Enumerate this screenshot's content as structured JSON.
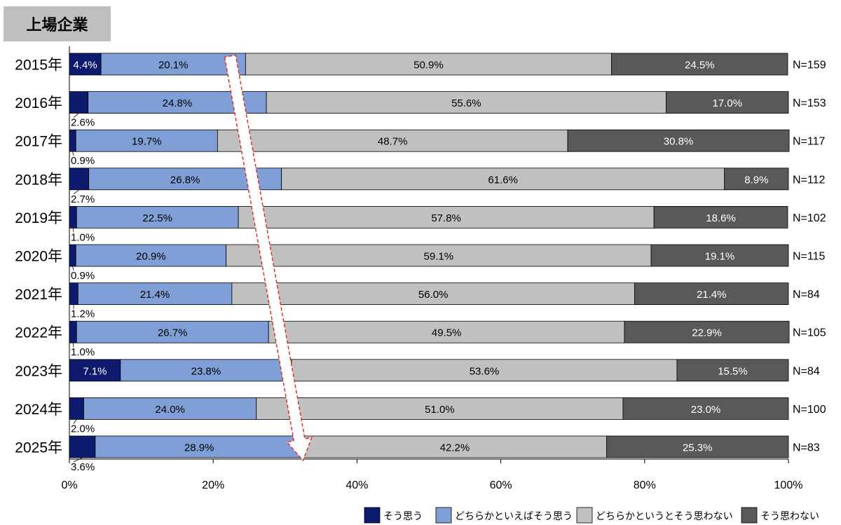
{
  "header": {
    "badge": "上場企業"
  },
  "chart_data": {
    "type": "bar",
    "orientation": "horizontal-stacked-100",
    "categories": [
      "2015年",
      "2016年",
      "2017年",
      "2018年",
      "2019年",
      "2020年",
      "2021年",
      "2022年",
      "2023年",
      "2024年",
      "2025年"
    ],
    "n_labels": [
      "N=159",
      "N=153",
      "N=117",
      "N=112",
      "N=102",
      "N=115",
      "N=84",
      "N=105",
      "N=84",
      "N=100",
      "N=83"
    ],
    "series": [
      {
        "name": "そう思う",
        "color": "#0d1a6e",
        "values": [
          4.4,
          2.6,
          0.9,
          2.7,
          1.0,
          0.9,
          1.2,
          1.0,
          7.1,
          2.0,
          3.6
        ],
        "labels": [
          "4.4%",
          "2.6%",
          "0.9%",
          "2.7%",
          "1.0%",
          "0.9%",
          "1.2%",
          "1.0%",
          "7.1%",
          "2.0%",
          "3.6%"
        ]
      },
      {
        "name": "どちらかといえばそう思う",
        "color": "#7f9fd6",
        "values": [
          20.1,
          24.8,
          19.7,
          26.8,
          22.5,
          20.9,
          21.4,
          26.7,
          23.8,
          24.0,
          28.9
        ],
        "labels": [
          "20.1%",
          "24.8%",
          "19.7%",
          "26.8%",
          "22.5%",
          "20.9%",
          "21.4%",
          "26.7%",
          "23.8%",
          "24.0%",
          "28.9%"
        ]
      },
      {
        "name": "どちらかというとそう思わない",
        "color": "#c0c0c0",
        "values": [
          50.9,
          55.6,
          48.7,
          61.6,
          57.8,
          59.1,
          56.0,
          49.5,
          53.6,
          51.0,
          42.2
        ],
        "labels": [
          "50.9%",
          "55.6%",
          "48.7%",
          "61.6%",
          "57.8%",
          "59.1%",
          "56.0%",
          "49.5%",
          "53.6%",
          "51.0%",
          "42.2%"
        ]
      },
      {
        "name": "そう思わない",
        "color": "#595959",
        "values": [
          24.5,
          17.0,
          30.8,
          8.9,
          18.6,
          19.1,
          21.4,
          22.9,
          15.5,
          23.0,
          25.3
        ],
        "labels": [
          "24.5%",
          "17.0%",
          "30.8%",
          "8.9%",
          "18.6%",
          "19.1%",
          "21.4%",
          "22.9%",
          "15.5%",
          "23.0%",
          "25.3%"
        ]
      }
    ],
    "x_ticks": [
      "0%",
      "20%",
      "40%",
      "60%",
      "80%",
      "100%"
    ],
    "xlim": [
      0,
      100
    ],
    "inside_label_first_series_rows": [
      0,
      8
    ],
    "legend": "bottom-right",
    "annotation": "trend-arrow-from-2015-to-2025-at-blue-segment-end"
  }
}
